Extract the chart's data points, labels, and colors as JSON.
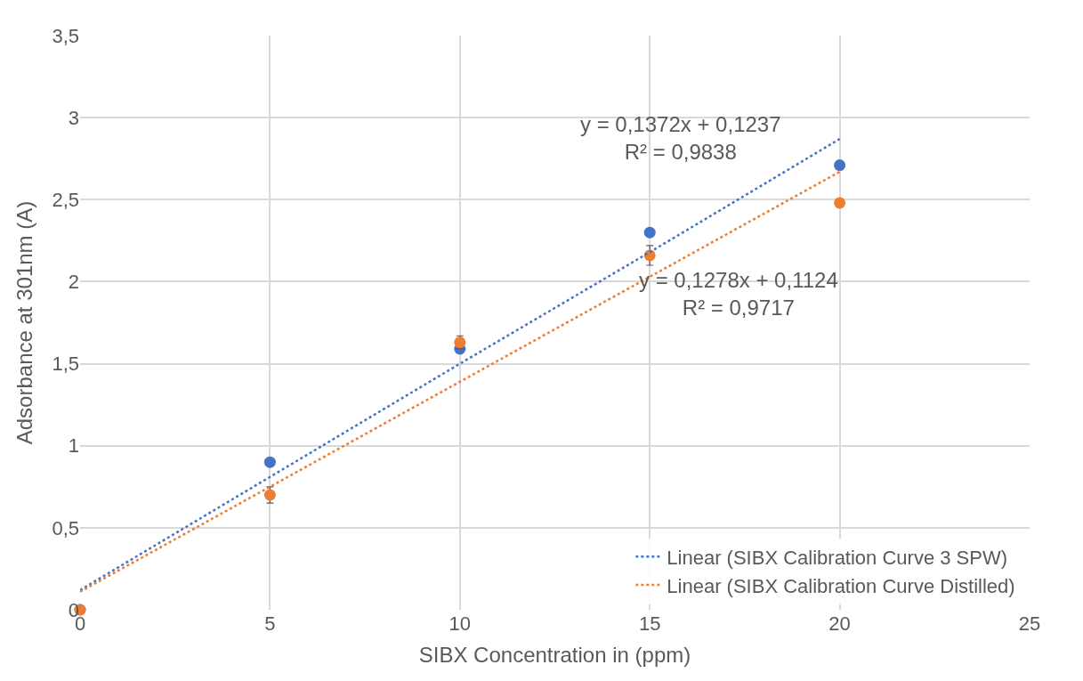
{
  "chart_data": {
    "type": "scatter",
    "xlabel": "SIBX Concentration in (ppm)",
    "ylabel": "Adsorbance at 301nm (A)",
    "x": [
      0,
      5,
      10,
      15,
      20
    ],
    "series": [
      {
        "color": "#4472c4",
        "values": [
          0,
          0.9,
          1.59,
          2.3,
          2.71
        ],
        "marker": "circle"
      },
      {
        "color": "#ed7d31",
        "values": [
          0,
          0.7,
          1.63,
          2.16,
          2.48
        ],
        "errors": [
          null,
          0.05,
          0.04,
          0.06,
          0.01
        ],
        "marker": "circle"
      },
      {
        "type": "line",
        "name": "Linear (SIBX Calibration Curve 3 SPW)",
        "color": "#4472c4",
        "values": [
          0.12,
          0.81,
          1.5,
          2.18,
          2.87
        ],
        "line_style": "dotted",
        "marker": "none"
      },
      {
        "type": "line",
        "name": "Linear (SIBX Calibration Curve Distilled)",
        "color": "#ed7d31",
        "values": [
          0.11,
          0.75,
          1.39,
          2.03,
          2.67
        ],
        "line_style": "dotted",
        "marker": "none"
      }
    ],
    "annotations": [
      "y = 0,1372x + 0,1237\nR² = 0,9838",
      "y = 0,1278x + 0,1124\nR² = 0,9717"
    ],
    "xlim": [
      0,
      25
    ],
    "xticks": [
      0,
      5,
      10,
      15,
      20,
      25
    ],
    "ylim": [
      0,
      3.5
    ],
    "yticks": [
      0,
      {
        "value": 0.5,
        "label": "0,5"
      },
      1,
      {
        "value": 1.5,
        "label": "1,5"
      },
      2,
      {
        "value": 2.5,
        "label": "2,5"
      },
      3,
      {
        "value": 3.5,
        "label": "3,5"
      }
    ],
    "grid": true,
    "legend": "bottom right"
  }
}
